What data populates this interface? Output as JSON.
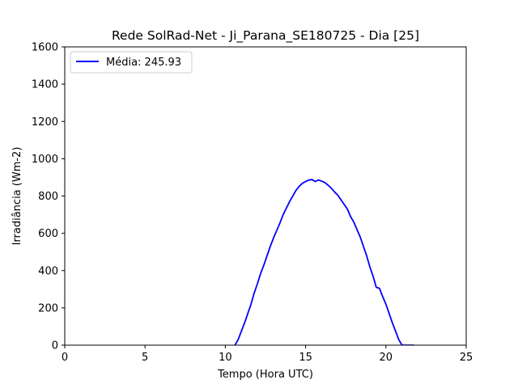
{
  "chart_data": {
    "type": "line",
    "title": "Rede SolRad-Net - Ji_Parana_SE180725 - Dia [25]",
    "xlabel": "Tempo (Hora UTC)",
    "ylabel": "Irradiância (Wm-2)",
    "xlim": [
      0,
      25
    ],
    "ylim": [
      0,
      1600
    ],
    "xticks": [
      0,
      5,
      10,
      15,
      20,
      25
    ],
    "yticks": [
      0,
      200,
      400,
      600,
      800,
      1000,
      1200,
      1400,
      1600
    ],
    "grid": false,
    "legend_position": "upper left",
    "series": [
      {
        "name": "Média: 245.93",
        "color": "#0000ff",
        "x": [
          10.6,
          10.8,
          11.0,
          11.2,
          11.4,
          11.6,
          11.8,
          12.0,
          12.2,
          12.4,
          12.6,
          12.8,
          13.0,
          13.2,
          13.4,
          13.6,
          13.8,
          14.0,
          14.2,
          14.4,
          14.6,
          14.8,
          15.0,
          15.2,
          15.4,
          15.6,
          15.8,
          16.0,
          16.2,
          16.4,
          16.6,
          16.8,
          17.0,
          17.2,
          17.4,
          17.6,
          17.8,
          18.0,
          18.2,
          18.4,
          18.6,
          18.8,
          19.0,
          19.2,
          19.4,
          19.6,
          19.8,
          20.0,
          20.2,
          20.4,
          20.6,
          20.8,
          21.0,
          21.2,
          21.4,
          21.6,
          21.75
        ],
        "y": [
          0,
          30,
          75,
          120,
          170,
          220,
          280,
          330,
          385,
          430,
          480,
          530,
          575,
          615,
          655,
          700,
          735,
          770,
          800,
          830,
          852,
          868,
          878,
          886,
          888,
          878,
          886,
          880,
          872,
          858,
          842,
          822,
          805,
          780,
          755,
          730,
          690,
          660,
          620,
          580,
          530,
          480,
          420,
          370,
          310,
          305,
          260,
          220,
          170,
          120,
          75,
          30,
          0,
          0,
          0,
          0,
          0
        ]
      }
    ]
  }
}
